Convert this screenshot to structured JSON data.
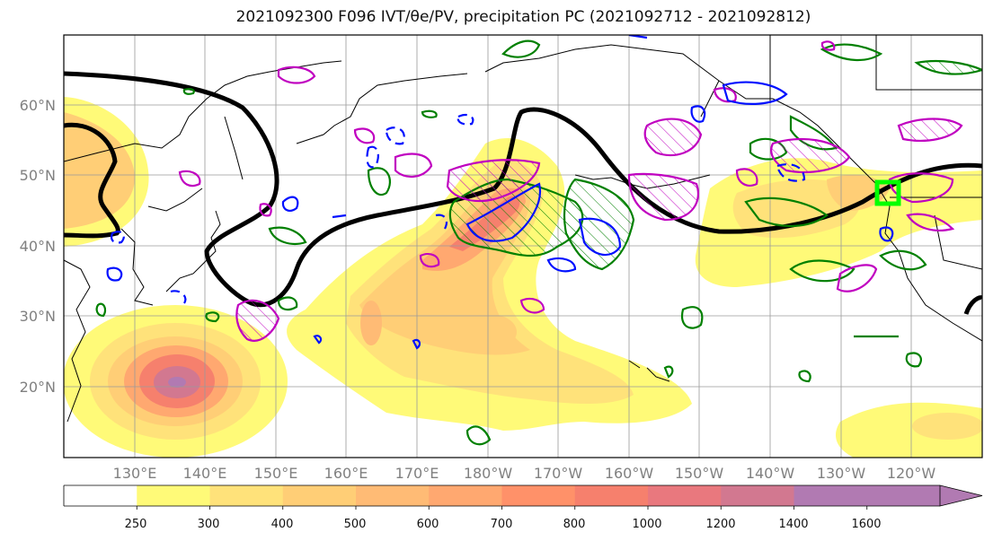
{
  "title": "2021092300 F096 IVT/θe/PV, precipitation PC (2021092712 - 2021092812)",
  "map": {
    "projection": "PlateCarree",
    "lon_range": [
      120,
      250
    ],
    "lat_range": [
      10,
      70
    ],
    "lat_labels": [
      "60°N",
      "50°N",
      "40°N",
      "30°N",
      "20°N"
    ],
    "lon_labels": [
      "130°E",
      "140°E",
      "150°E",
      "160°E",
      "170°E",
      "180°W",
      "170°W",
      "160°W",
      "150°W",
      "140°W",
      "130°W",
      "120°W"
    ],
    "highlight_box_color": "#00ff00"
  },
  "colorbar": {
    "ticks": [
      "250",
      "300",
      "400",
      "500",
      "600",
      "700",
      "800",
      "1000",
      "1200",
      "1400",
      "1600"
    ],
    "colors": [
      "#ffffff",
      "#fffa78",
      "#ffe27a",
      "#ffce76",
      "#ffbb75",
      "#ffa870",
      "#ff9169",
      "#f6806d",
      "#e9787e",
      "#d27890",
      "#b17ab2"
    ],
    "extend": "max"
  },
  "legend_colors": {
    "pv": "#000000",
    "theta_e_cold": "#0010ff",
    "theta_e_warm": "#c000c0",
    "precipitation": "#008000"
  }
}
